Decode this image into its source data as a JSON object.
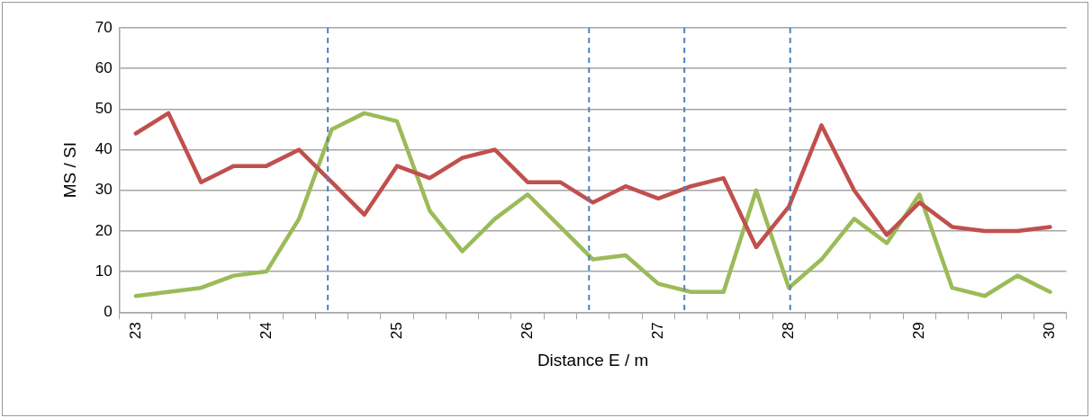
{
  "chart_data": {
    "type": "line",
    "xlabel": "Distance E / m",
    "ylabel": "MS / SI",
    "x": [
      23,
      23.25,
      23.5,
      23.75,
      24,
      24.25,
      24.5,
      24.75,
      25,
      25.25,
      25.5,
      25.75,
      26,
      26.25,
      26.5,
      26.75,
      27,
      27.25,
      27.5,
      27.75,
      28,
      28.25,
      28.5,
      28.75,
      29,
      29.25,
      29.5,
      29.75,
      30
    ],
    "series": [
      {
        "color": "#c0504d",
        "values": [
          44,
          49,
          32,
          36,
          36,
          40,
          32,
          24,
          36,
          33,
          38,
          40,
          32,
          32,
          27,
          31,
          28,
          31,
          33,
          16,
          26,
          46,
          30,
          19,
          27,
          21,
          20,
          20,
          21
        ]
      },
      {
        "color": "#9bbb59",
        "values": [
          4,
          5,
          6,
          9,
          10,
          23,
          45,
          49,
          47,
          25,
          15,
          23,
          29,
          21,
          13,
          14,
          7,
          5,
          5,
          30,
          6,
          13,
          23,
          17,
          29,
          6,
          4,
          9,
          5
        ]
      }
    ],
    "xlim": [
      22.875,
      30.125
    ],
    "xticks": [
      {
        "value": 22.875,
        "label": null
      },
      23,
      {
        "value": 23.125,
        "label": null
      },
      {
        "value": 23.375,
        "label": null
      },
      {
        "value": 23.625,
        "label": null
      },
      {
        "value": 23.875,
        "label": null
      },
      24,
      {
        "value": 24.125,
        "label": null
      },
      {
        "value": 24.375,
        "label": null
      },
      {
        "value": 24.625,
        "label": null
      },
      {
        "value": 24.875,
        "label": null
      },
      25,
      {
        "value": 25.125,
        "label": null
      },
      {
        "value": 25.375,
        "label": null
      },
      {
        "value": 25.625,
        "label": null
      },
      {
        "value": 25.875,
        "label": null
      },
      26,
      {
        "value": 26.125,
        "label": null
      },
      {
        "value": 26.375,
        "label": null
      },
      {
        "value": 26.625,
        "label": null
      },
      {
        "value": 26.875,
        "label": null
      },
      27,
      {
        "value": 27.125,
        "label": null
      },
      {
        "value": 27.375,
        "label": null
      },
      {
        "value": 27.625,
        "label": null
      },
      {
        "value": 27.875,
        "label": null
      },
      28,
      {
        "value": 28.125,
        "label": null
      },
      {
        "value": 28.375,
        "label": null
      },
      {
        "value": 28.625,
        "label": null
      },
      {
        "value": 28.875,
        "label": null
      },
      29,
      {
        "value": 29.125,
        "label": null
      },
      {
        "value": 29.375,
        "label": null
      },
      {
        "value": 29.625,
        "label": null
      },
      {
        "value": 29.875,
        "label": null
      },
      30,
      {
        "value": 30.125,
        "label": null
      }
    ],
    "ylim": [
      0,
      70
    ],
    "yticks": [
      0,
      10,
      20,
      30,
      40,
      50,
      60,
      70
    ],
    "grid": "y",
    "legend": false,
    "marker": "none",
    "line_style": "solid",
    "ref_lines": [
      {
        "axis": "x",
        "value": 24.47,
        "color": "#4f81bd",
        "line_style": "dashed"
      },
      {
        "axis": "x",
        "value": 26.47,
        "color": "#4f81bd",
        "line_style": "dashed"
      },
      {
        "axis": "x",
        "value": 27.2,
        "color": "#4f81bd",
        "line_style": "dashed"
      },
      {
        "axis": "x",
        "value": 28.01,
        "color": "#4f81bd",
        "line_style": "dashed"
      }
    ]
  }
}
